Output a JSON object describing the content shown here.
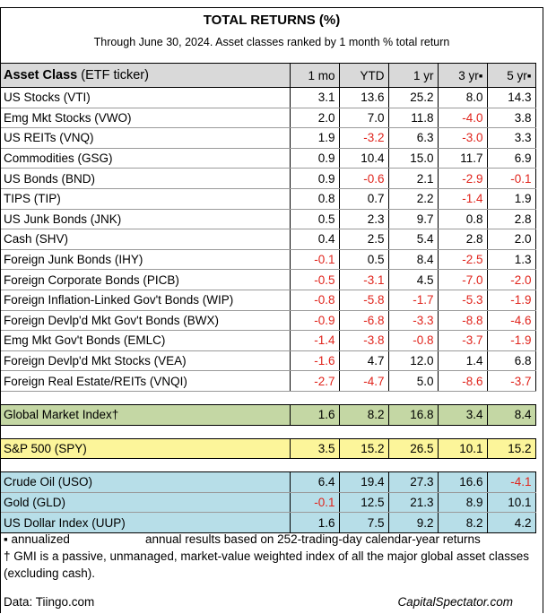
{
  "title": "TOTAL RETURNS (%)",
  "subtitle": "Through June 30, 2024. Asset classes ranked by 1 month % total return",
  "headers": {
    "asset_class": "Asset Class",
    "asset_class_suffix": "(ETF ticker)",
    "mo1": "1 mo",
    "ytd": "YTD",
    "yr1": "1 yr",
    "yr3": "3 yr▪",
    "yr5": "5 yr▪"
  },
  "rows": [
    {
      "name": "US Stocks (VTI)",
      "mo1": "3.1",
      "ytd": "13.6",
      "yr1": "25.2",
      "yr3": "8.0",
      "yr5": "14.3"
    },
    {
      "name": "Emg Mkt Stocks (VWO)",
      "mo1": "2.0",
      "ytd": "7.0",
      "yr1": "11.8",
      "yr3": "-4.0",
      "yr5": "3.8"
    },
    {
      "name": "US REITs (VNQ)",
      "mo1": "1.9",
      "ytd": "-3.2",
      "yr1": "6.3",
      "yr3": "-3.0",
      "yr5": "3.3"
    },
    {
      "name": "Commodities (GSG)",
      "mo1": "0.9",
      "ytd": "10.4",
      "yr1": "15.0",
      "yr3": "11.7",
      "yr5": "6.9"
    },
    {
      "name": "US Bonds (BND)",
      "mo1": "0.9",
      "ytd": "-0.6",
      "yr1": "2.1",
      "yr3": "-2.9",
      "yr5": "-0.1"
    },
    {
      "name": "TIPS (TIP)",
      "mo1": "0.8",
      "ytd": "0.7",
      "yr1": "2.2",
      "yr3": "-1.4",
      "yr5": "1.9"
    },
    {
      "name": "US Junk Bonds (JNK)",
      "mo1": "0.5",
      "ytd": "2.3",
      "yr1": "9.7",
      "yr3": "0.8",
      "yr5": "2.8"
    },
    {
      "name": "Cash (SHV)",
      "mo1": "0.4",
      "ytd": "2.5",
      "yr1": "5.4",
      "yr3": "2.8",
      "yr5": "2.0"
    },
    {
      "name": "Foreign Junk Bonds (IHY)",
      "mo1": "-0.1",
      "ytd": "0.5",
      "yr1": "8.4",
      "yr3": "-2.5",
      "yr5": "1.3"
    },
    {
      "name": "Foreign Corporate Bonds (PICB)",
      "mo1": "-0.5",
      "ytd": "-3.1",
      "yr1": "4.5",
      "yr3": "-7.0",
      "yr5": "-2.0"
    },
    {
      "name": "Foreign Inflation-Linked Gov't Bonds (WIP)",
      "mo1": "-0.8",
      "ytd": "-5.8",
      "yr1": "-1.7",
      "yr3": "-5.3",
      "yr5": "-1.9"
    },
    {
      "name": "Foreign Devlp'd Mkt Gov't Bonds (BWX)",
      "mo1": "-0.9",
      "ytd": "-6.8",
      "yr1": "-3.3",
      "yr3": "-8.8",
      "yr5": "-4.6"
    },
    {
      "name": "Emg Mkt Gov't Bonds (EMLC)",
      "mo1": "-1.4",
      "ytd": "-3.8",
      "yr1": "-0.8",
      "yr3": "-3.7",
      "yr5": "-1.9"
    },
    {
      "name": "Foreign Devlp'd Mkt Stocks (VEA)",
      "mo1": "-1.6",
      "ytd": "4.7",
      "yr1": "12.0",
      "yr3": "1.4",
      "yr5": "6.8"
    },
    {
      "name": "Foreign Real Estate/REITs (VNQI)",
      "mo1": "-2.7",
      "ytd": "-4.7",
      "yr1": "5.0",
      "yr3": "-8.6",
      "yr5": "-3.7"
    }
  ],
  "gmi": {
    "name": "Global Market Index†",
    "mo1": "1.6",
    "ytd": "8.2",
    "yr1": "16.8",
    "yr3": "3.4",
    "yr5": "8.4"
  },
  "spy": {
    "name": "S&P 500 (SPY)",
    "mo1": "3.5",
    "ytd": "15.2",
    "yr1": "26.5",
    "yr3": "10.1",
    "yr5": "15.2"
  },
  "commodity_rows": [
    {
      "name": "Crude Oil (USO)",
      "mo1": "6.4",
      "ytd": "19.4",
      "yr1": "27.3",
      "yr3": "16.6",
      "yr5": "-4.1"
    },
    {
      "name": "Gold (GLD)",
      "mo1": "-0.1",
      "ytd": "12.5",
      "yr1": "21.3",
      "yr3": "8.9",
      "yr5": "10.1"
    },
    {
      "name": "US Dollar Index (UUP)",
      "mo1": "1.6",
      "ytd": "7.5",
      "yr1": "9.2",
      "yr3": "8.2",
      "yr5": "4.2"
    }
  ],
  "notes": {
    "annualized_left": "▪ annualized",
    "annualized_right": "annual results based on 252-trading-day calendar-year returns",
    "gmi_note": "† GMI is a passive, unmanaged, market-value weighted index of all the major global asset classes (excluding cash)."
  },
  "footer": {
    "source": "Data: Tiingo.com",
    "brand": "CapitalSpectator.com"
  },
  "colors": {
    "negative": "#e0241c",
    "header_bg": "#d9d9d9",
    "gmi_bg": "#c4d7a4",
    "spy_bg": "#fcf59a",
    "commodity_bg": "#b7dee8"
  }
}
